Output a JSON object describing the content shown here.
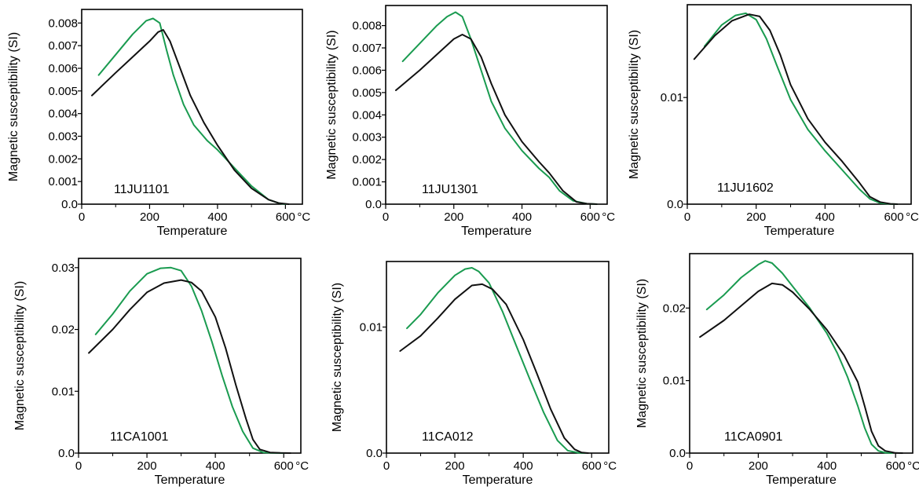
{
  "colors": {
    "heating": "#1a9b50",
    "cooling": "#111111",
    "frame": "#000000"
  },
  "chart_data": [
    {
      "type": "line",
      "sample": "11JU1101",
      "xlabel": "Temperature",
      "ylabel": "Magnetic susceptibility (SI)",
      "x_unit": "°C",
      "xlim": [
        0,
        650
      ],
      "ylim": [
        0,
        0.0086
      ],
      "xticks": [
        0,
        200,
        400,
        600
      ],
      "yticks": [
        0.0,
        0.001,
        0.002,
        0.003,
        0.004,
        0.005,
        0.006,
        0.007,
        0.008
      ],
      "ytick_labels": [
        "0.0",
        "0.001",
        "0.002",
        "0.003",
        "0.004",
        "0.005",
        "0.006",
        "0.007",
        "0.008"
      ],
      "series": [
        {
          "role": "heating",
          "x": [
            50,
            100,
            150,
            190,
            210,
            230,
            250,
            270,
            300,
            330,
            370,
            400,
            450,
            500,
            550,
            580,
            600
          ],
          "y": [
            0.0057,
            0.0066,
            0.0075,
            0.0081,
            0.0082,
            0.008,
            0.0068,
            0.0057,
            0.0044,
            0.0035,
            0.0028,
            0.0024,
            0.0016,
            0.0008,
            0.0002,
            5e-05,
            0.0
          ]
        },
        {
          "role": "cooling",
          "x": [
            30,
            100,
            150,
            200,
            225,
            240,
            260,
            290,
            320,
            360,
            400,
            450,
            500,
            550,
            580,
            610
          ],
          "y": [
            0.0048,
            0.0058,
            0.0065,
            0.0072,
            0.0076,
            0.0077,
            0.0072,
            0.006,
            0.0048,
            0.0036,
            0.0026,
            0.0015,
            0.0007,
            0.0002,
            5e-05,
            0.0
          ]
        }
      ]
    },
    {
      "type": "line",
      "sample": "11JU1301",
      "xlabel": "Temperature",
      "ylabel": "Magnetic susceptibility (SI)",
      "x_unit": "°C",
      "xlim": [
        0,
        650
      ],
      "ylim": [
        0,
        0.0089
      ],
      "xticks": [
        0,
        200,
        400,
        600
      ],
      "yticks": [
        0.0,
        0.001,
        0.002,
        0.003,
        0.004,
        0.005,
        0.006,
        0.007,
        0.008
      ],
      "ytick_labels": [
        "0.0",
        "0.001",
        "0.002",
        "0.003",
        "0.004",
        "0.005",
        "0.006",
        "0.007",
        "0.008"
      ],
      "series": [
        {
          "role": "heating",
          "x": [
            50,
            100,
            150,
            180,
            205,
            225,
            250,
            280,
            310,
            350,
            400,
            450,
            480,
            510,
            550,
            590,
            620
          ],
          "y": [
            0.0064,
            0.0072,
            0.008,
            0.0084,
            0.0086,
            0.0084,
            0.0074,
            0.006,
            0.0046,
            0.0034,
            0.0024,
            0.0016,
            0.0012,
            0.0006,
            0.00015,
            2e-05,
            0.0
          ]
        },
        {
          "role": "cooling",
          "x": [
            30,
            100,
            150,
            200,
            225,
            250,
            280,
            310,
            350,
            400,
            450,
            480,
            520,
            560,
            590,
            620
          ],
          "y": [
            0.0051,
            0.006,
            0.0067,
            0.0074,
            0.0076,
            0.0074,
            0.0066,
            0.0054,
            0.004,
            0.0028,
            0.0019,
            0.0014,
            0.0006,
            0.0001,
            2e-05,
            0.0
          ]
        }
      ]
    },
    {
      "type": "line",
      "sample": "11JU1602",
      "xlabel": "Temperature",
      "ylabel": "Magnetic susceptibility (SI)",
      "x_unit": "°C",
      "xlim": [
        0,
        650
      ],
      "ylim": [
        0,
        0.0187
      ],
      "xticks": [
        0,
        200,
        400,
        600
      ],
      "yticks": [
        0.0,
        0.01
      ],
      "ytick_labels": [
        "0.0",
        "0.01"
      ],
      "series": [
        {
          "role": "heating",
          "x": [
            50,
            100,
            140,
            170,
            200,
            230,
            260,
            300,
            350,
            400,
            450,
            500,
            530,
            560,
            590,
            610
          ],
          "y": [
            0.0148,
            0.0168,
            0.0177,
            0.0179,
            0.0173,
            0.0155,
            0.013,
            0.0098,
            0.007,
            0.005,
            0.0032,
            0.0014,
            0.0005,
            0.0001,
            2e-05,
            0.0
          ]
        },
        {
          "role": "cooling",
          "x": [
            20,
            80,
            130,
            180,
            210,
            240,
            270,
            300,
            350,
            400,
            450,
            500,
            530,
            560,
            590,
            610
          ],
          "y": [
            0.0136,
            0.0158,
            0.0172,
            0.0178,
            0.0176,
            0.0163,
            0.014,
            0.0112,
            0.008,
            0.0058,
            0.004,
            0.002,
            0.0007,
            0.0002,
            3e-05,
            0.0
          ]
        }
      ]
    },
    {
      "type": "line",
      "sample": "11CA1001",
      "xlabel": "Temperature",
      "ylabel": "Magnetic susceptibility (SI)",
      "x_unit": "°C",
      "xlim": [
        0,
        650
      ],
      "ylim": [
        0,
        0.0315
      ],
      "xticks": [
        0,
        200,
        400,
        600
      ],
      "yticks": [
        0.0,
        0.01,
        0.02,
        0.03
      ],
      "ytick_labels": [
        "0.0",
        "0.01",
        "0.02",
        "0.03"
      ],
      "series": [
        {
          "role": "heating",
          "x": [
            50,
            100,
            150,
            200,
            240,
            270,
            300,
            330,
            360,
            390,
            420,
            450,
            480,
            510,
            540,
            570,
            600
          ],
          "y": [
            0.0192,
            0.0225,
            0.0262,
            0.029,
            0.0299,
            0.03,
            0.0295,
            0.027,
            0.023,
            0.018,
            0.0125,
            0.0075,
            0.0035,
            0.0008,
            0.0001,
            2e-05,
            0.0
          ]
        },
        {
          "role": "cooling",
          "x": [
            30,
            100,
            150,
            200,
            250,
            300,
            330,
            360,
            400,
            430,
            460,
            490,
            510,
            530,
            560,
            590,
            620
          ],
          "y": [
            0.0162,
            0.02,
            0.0232,
            0.026,
            0.0275,
            0.028,
            0.0276,
            0.0262,
            0.022,
            0.017,
            0.011,
            0.0055,
            0.0022,
            0.0006,
            0.0001,
            2e-05,
            0.0
          ]
        }
      ]
    },
    {
      "type": "line",
      "sample": "11CA012",
      "xlabel": "Temperature",
      "ylabel": "Magnetic susceptibility (SI)",
      "x_unit": "°C",
      "xlim": [
        0,
        650
      ],
      "ylim": [
        0,
        0.0152
      ],
      "xticks": [
        0,
        200,
        400,
        600
      ],
      "yticks": [
        0.0,
        0.01
      ],
      "ytick_labels": [
        "0.0",
        "0.01"
      ],
      "series": [
        {
          "role": "heating",
          "x": [
            60,
            100,
            150,
            200,
            230,
            250,
            270,
            300,
            340,
            380,
            420,
            460,
            500,
            530,
            560,
            580
          ],
          "y": [
            0.0099,
            0.011,
            0.0127,
            0.0141,
            0.0146,
            0.0147,
            0.0144,
            0.0135,
            0.0112,
            0.0085,
            0.0058,
            0.0032,
            0.001,
            0.0002,
            3e-05,
            0.0
          ]
        },
        {
          "role": "cooling",
          "x": [
            40,
            100,
            150,
            200,
            250,
            280,
            310,
            350,
            400,
            440,
            480,
            520,
            550,
            570,
            590
          ],
          "y": [
            0.0081,
            0.0093,
            0.0107,
            0.0122,
            0.0133,
            0.0134,
            0.013,
            0.0118,
            0.009,
            0.0063,
            0.0035,
            0.0012,
            0.0003,
            5e-05,
            0.0
          ]
        }
      ]
    },
    {
      "type": "line",
      "sample": "11CA0901",
      "xlabel": "Temperature",
      "ylabel": "Magnetic susceptibility (SI)",
      "x_unit": "°C",
      "xlim": [
        0,
        650
      ],
      "ylim": [
        0,
        0.0275
      ],
      "xticks": [
        0,
        200,
        400,
        600
      ],
      "yticks": [
        0.0,
        0.01,
        0.02
      ],
      "ytick_labels": [
        "0.0",
        "0.01",
        "0.02"
      ],
      "series": [
        {
          "role": "heating",
          "x": [
            50,
            100,
            150,
            200,
            220,
            240,
            270,
            300,
            350,
            400,
            430,
            460,
            490,
            510,
            530,
            550,
            570,
            590
          ],
          "y": [
            0.0198,
            0.0218,
            0.0242,
            0.026,
            0.0265,
            0.0262,
            0.0248,
            0.023,
            0.02,
            0.0165,
            0.0138,
            0.0105,
            0.0065,
            0.0035,
            0.0012,
            0.0003,
            5e-05,
            0.0
          ]
        },
        {
          "role": "cooling",
          "x": [
            30,
            100,
            150,
            200,
            240,
            270,
            300,
            350,
            400,
            450,
            490,
            510,
            530,
            550,
            570,
            600,
            620
          ],
          "y": [
            0.016,
            0.0183,
            0.0203,
            0.0223,
            0.0234,
            0.0232,
            0.0222,
            0.0198,
            0.017,
            0.0135,
            0.0098,
            0.0065,
            0.003,
            0.001,
            0.0003,
            2e-05,
            0.0
          ]
        }
      ]
    }
  ]
}
